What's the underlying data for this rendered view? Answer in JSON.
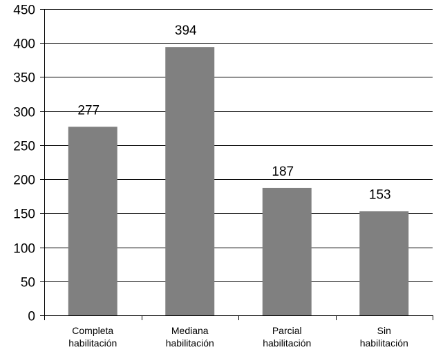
{
  "chart_data": {
    "type": "bar",
    "categories": [
      [
        "Completa",
        "habilitación"
      ],
      [
        "Mediana",
        "habilitación"
      ],
      [
        "Parcial",
        "habilitación"
      ],
      [
        "Sin",
        "habilitación"
      ]
    ],
    "values": [
      277,
      394,
      187,
      153
    ],
    "data_labels": [
      "277",
      "394",
      "187",
      "153"
    ],
    "ylim": [
      0,
      450
    ],
    "yticks": [
      0,
      50,
      100,
      150,
      200,
      250,
      300,
      350,
      400,
      450
    ],
    "ytick_labels": [
      "0",
      "50",
      "100",
      "150",
      "200",
      "250",
      "300",
      "350",
      "400",
      "450"
    ],
    "gridlines": true,
    "legend": "none",
    "colors": {
      "bar": "#808080",
      "grid": "#000000",
      "text": "#000000"
    }
  }
}
